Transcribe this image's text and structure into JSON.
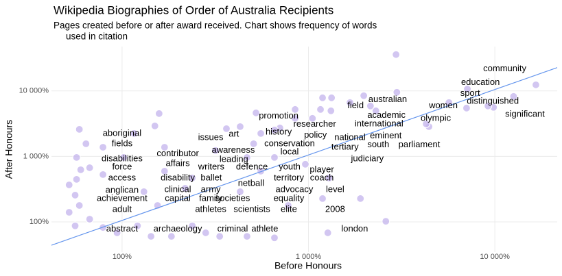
{
  "chart_data": {
    "type": "scatter",
    "title": "Wikipedia Biographies of Order of Australia Recipients",
    "subtitle": [
      "Pages created before or after award received. Chart shows frequency of words",
      "used in citation"
    ],
    "x_label": "Before Honours",
    "y_label": "After Honours",
    "log_x": true,
    "log_y": true,
    "grid": true,
    "color": "#c3b3ec",
    "xlim": [
      41.8,
      21600
    ],
    "ylim": [
      34.6,
      47600
    ],
    "xticks": [
      {
        "value": 100,
        "label": "100%"
      },
      {
        "value": 1000,
        "label": "1 000%"
      },
      {
        "value": 10000,
        "label": "10 000%"
      }
    ],
    "yticks": [
      {
        "value": 100,
        "label": "100%"
      },
      {
        "value": 1000,
        "label": "1 000%"
      },
      {
        "value": 10000,
        "label": "10 000%"
      }
    ],
    "x": [
      2950,
      16600,
      12600,
      9840,
      9180,
      5670,
      7120,
      7050,
      4430,
      4280,
      2980,
      2300,
      2150,
      1980,
      1670,
      1330,
      1320,
      1190,
      1160,
      1050,
      848,
      848,
      703,
      657,
      555,
      523,
      508,
      430,
      363,
      317,
      158,
      150,
      116,
      59,
      64,
      57,
      60,
      67,
      79,
      57,
      52,
      56,
      59,
      52,
      56,
      67,
      79,
      94,
      121,
      143,
      184,
      238,
      281,
      334,
      468,
      657,
      1270,
      778,
      1190,
      1900,
      2600,
      1290,
      962,
      131,
      155,
      169,
      218,
      430,
      555,
      657,
      79,
      102,
      169,
      238,
      468
    ],
    "values": [
      35900,
      12400,
      8250,
      5610,
      5890,
      6640,
      10700,
      5470,
      2850,
      3140,
      9530,
      4970,
      5890,
      8450,
      6640,
      7850,
      4970,
      7850,
      5210,
      3810,
      5210,
      3810,
      2720,
      2530,
      2240,
      4620,
      1560,
      2850,
      2650,
      1230,
      4510,
      2920,
      2240,
      2590,
      1560,
      964,
      625,
      671,
      528,
      446,
      367,
      256,
      178,
      140,
      87,
      110,
      82,
      68,
      87,
      60,
      60,
      87,
      68,
      60,
      60,
      57,
      68,
      178,
      227,
      227,
      102,
      468,
      759,
      289,
      178,
      595,
      326,
      289,
      595,
      964,
      1380,
      964,
      1380,
      468,
      964
    ],
    "trend_line": {
      "x": [
        41.8,
        21600
      ],
      "y": [
        44,
        22700
      ],
      "color": "#6495ed"
    },
    "annotations": [
      {
        "text": "community",
        "x": 11300,
        "y": 21600
      },
      {
        "text": "education",
        "x": 8370,
        "y": 13400
      },
      {
        "text": "sport",
        "x": 7370,
        "y": 9080
      },
      {
        "text": "distinguished",
        "x": 9750,
        "y": 6960
      },
      {
        "text": "women",
        "x": 5290,
        "y": 5890
      },
      {
        "text": "significant",
        "x": 14500,
        "y": 4400
      },
      {
        "text": "australian",
        "x": 2660,
        "y": 7310
      },
      {
        "text": "field",
        "x": 1790,
        "y": 5890
      },
      {
        "text": "academic",
        "x": 2620,
        "y": 4200
      },
      {
        "text": "olympic",
        "x": 4820,
        "y": 3810
      },
      {
        "text": "international",
        "x": 2390,
        "y": 3140
      },
      {
        "text": "promotion",
        "x": 692,
        "y": 4100
      },
      {
        "text": "researcher",
        "x": 1080,
        "y": 3070
      },
      {
        "text": "history",
        "x": 692,
        "y": 2350
      },
      {
        "text": "policy",
        "x": 1090,
        "y": 2090
      },
      {
        "text": "national",
        "x": 1670,
        "y": 1940
      },
      {
        "text": "eminent",
        "x": 2600,
        "y": 2040
      },
      {
        "text": "art",
        "x": 398,
        "y": 2190
      },
      {
        "text": "issues",
        "x": 299,
        "y": 1940
      },
      {
        "text": "aboriginal",
        "x": 100,
        "y": 2240
      },
      {
        "text": "fields",
        "x": 100,
        "y": 1560
      },
      {
        "text": "conservation",
        "x": 792,
        "y": 1560
      },
      {
        "text": "south",
        "x": 2370,
        "y": 1490
      },
      {
        "text": "parliament",
        "x": 3930,
        "y": 1490
      },
      {
        "text": "tertiary",
        "x": 1570,
        "y": 1380
      },
      {
        "text": "local",
        "x": 792,
        "y": 1170
      },
      {
        "text": "awareness",
        "x": 395,
        "y": 1230
      },
      {
        "text": "contributor",
        "x": 199,
        "y": 1090
      },
      {
        "text": "judiciary",
        "x": 2070,
        "y": 919
      },
      {
        "text": "disabilities",
        "x": 100,
        "y": 919
      },
      {
        "text": "leading",
        "x": 398,
        "y": 897
      },
      {
        "text": "affairs",
        "x": 199,
        "y": 776
      },
      {
        "text": "force",
        "x": 100,
        "y": 688
      },
      {
        "text": "writers",
        "x": 301,
        "y": 688
      },
      {
        "text": "defence",
        "x": 497,
        "y": 688
      },
      {
        "text": "youth",
        "x": 792,
        "y": 688
      },
      {
        "text": "player",
        "x": 1180,
        "y": 625
      },
      {
        "text": "access",
        "x": 100,
        "y": 468
      },
      {
        "text": "disability",
        "x": 199,
        "y": 468
      },
      {
        "text": "ballet",
        "x": 301,
        "y": 468
      },
      {
        "text": "territory",
        "x": 785,
        "y": 468
      },
      {
        "text": "coach",
        "x": 1180,
        "y": 468
      },
      {
        "text": "netball",
        "x": 492,
        "y": 386
      },
      {
        "text": "anglican",
        "x": 100,
        "y": 303
      },
      {
        "text": "clinical",
        "x": 199,
        "y": 311
      },
      {
        "text": "army",
        "x": 299,
        "y": 311
      },
      {
        "text": "advocacy",
        "x": 840,
        "y": 311
      },
      {
        "text": "level",
        "x": 1390,
        "y": 311
      },
      {
        "text": "achievement",
        "x": 100,
        "y": 227
      },
      {
        "text": "capital",
        "x": 199,
        "y": 227
      },
      {
        "text": "family",
        "x": 299,
        "y": 227
      },
      {
        "text": "societies",
        "x": 392,
        "y": 227
      },
      {
        "text": "equality",
        "x": 785,
        "y": 227
      },
      {
        "text": "adult",
        "x": 100,
        "y": 154
      },
      {
        "text": "athletes",
        "x": 299,
        "y": 154
      },
      {
        "text": "scientists",
        "x": 497,
        "y": 154
      },
      {
        "text": "elite",
        "x": 785,
        "y": 154
      },
      {
        "text": "2008",
        "x": 1390,
        "y": 154
      },
      {
        "text": "abstract",
        "x": 100,
        "y": 77
      },
      {
        "text": "archaeology",
        "x": 199,
        "y": 77
      },
      {
        "text": "criminal",
        "x": 392,
        "y": 77
      },
      {
        "text": "athlete",
        "x": 583,
        "y": 77
      },
      {
        "text": "london",
        "x": 1770,
        "y": 77
      }
    ]
  }
}
